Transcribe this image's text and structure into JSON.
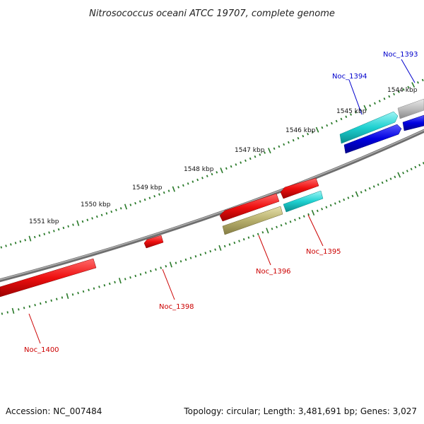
{
  "title": "Nitrosococcus oceani ATCC 19707, complete genome",
  "footer": {
    "accession": "Accession: NC_007484",
    "info": "Topology: circular; Length: 3,481,691 bp; Genes: 3,027"
  },
  "kbp_labels": [
    "1544 kbp",
    "1545 kbp",
    "1546 kbp",
    "1547 kbp",
    "1548 kbp",
    "1549 kbp",
    "1550 kbp",
    "1551 kbp"
  ],
  "genes": [
    {
      "name": "Noc_1393",
      "strand": "forward",
      "color": "#0000cc"
    },
    {
      "name": "Noc_1394",
      "strand": "forward",
      "color": "#0000cc"
    },
    {
      "name": "Noc_1395",
      "strand": "reverse",
      "color": "#cc0000"
    },
    {
      "name": "Noc_1396",
      "strand": "reverse",
      "color": "#cc0000"
    },
    {
      "name": "Noc_1398",
      "strand": "reverse",
      "color": "#cc0000"
    },
    {
      "name": "Noc_1400",
      "strand": "reverse",
      "color": "#cc0000"
    }
  ],
  "colors": {
    "backbone": "#8a8a8a",
    "tick": "#2a7a2a",
    "forward_label": "#0000cc",
    "reverse_label": "#cc0000",
    "red": "#ee1111",
    "cyan": "#22cccc",
    "blue": "#0000dd",
    "olive": "#b8b070",
    "gray": "#bbbbbb"
  }
}
